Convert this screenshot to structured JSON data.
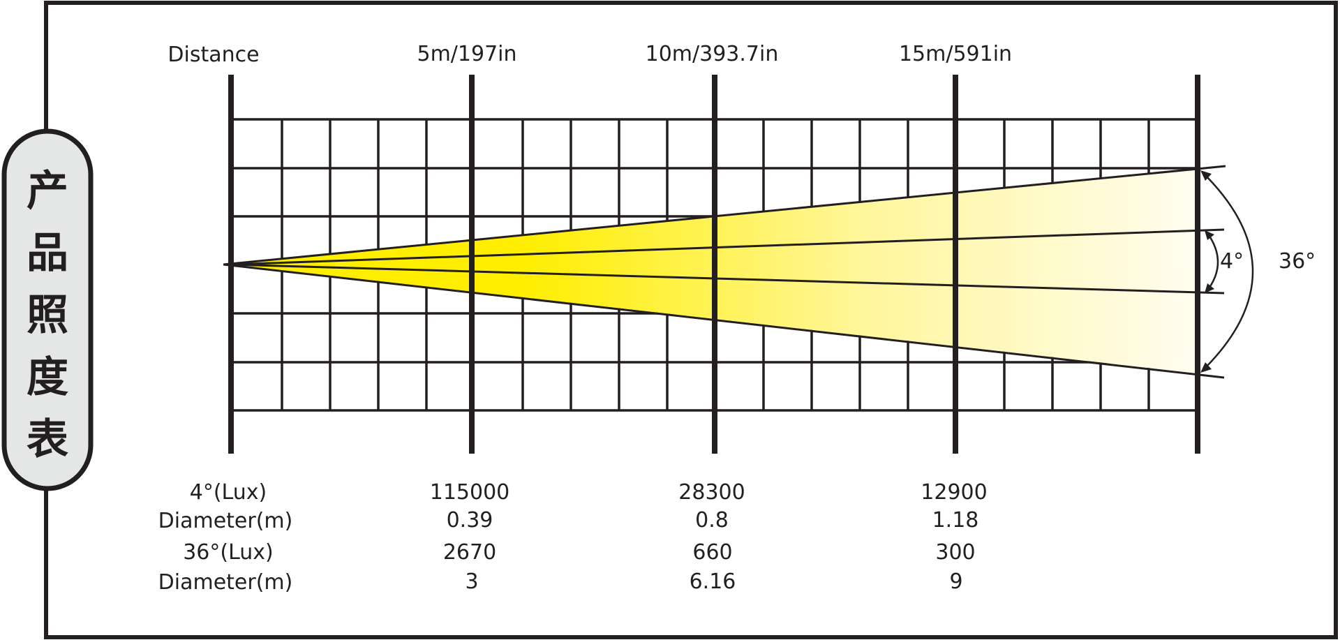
{
  "side_title": [
    "产",
    "品",
    "照",
    "度",
    "表"
  ],
  "header": {
    "distance_label": "Distance",
    "columns": [
      "5m/197in",
      "10m/393.7in",
      "15m/591in"
    ]
  },
  "angles": {
    "narrow": "4°",
    "wide": "36°"
  },
  "colors": {
    "frame": "#231f20",
    "beam_bright": "#ffee00",
    "beam_fade": "#ffffff",
    "pill_fill": "#e5e6e6"
  },
  "table": {
    "row_labels": [
      "4°(Lux)",
      "Diameter(m)",
      "36°(Lux)",
      "Diameter(m)"
    ],
    "columns": [
      [
        "115000",
        "0.39",
        "2670",
        "3"
      ],
      [
        "28300",
        "0.8",
        "660",
        "6.16"
      ],
      [
        "12900",
        "1.18",
        "300",
        "9"
      ]
    ]
  }
}
